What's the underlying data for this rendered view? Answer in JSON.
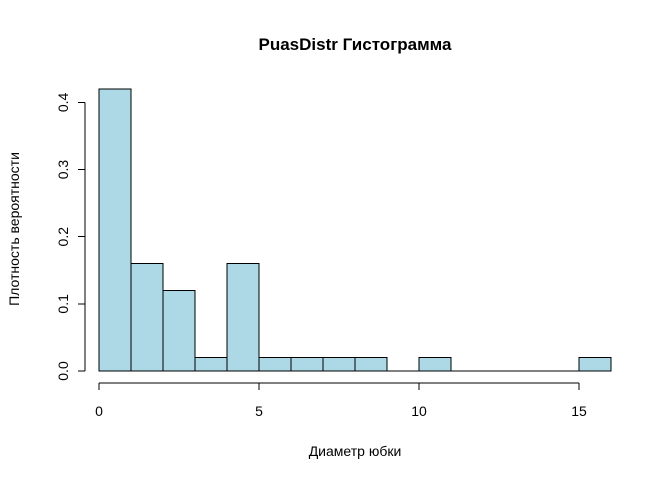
{
  "chart_data": {
    "type": "bar",
    "subtype": "histogram",
    "title": "PuasDistr Гистограмма",
    "xlabel": "Диаметр юбки",
    "ylabel": "Плотность вероятности",
    "bin_edges": [
      0,
      1,
      2,
      3,
      4,
      5,
      6,
      7,
      8,
      9,
      10,
      11,
      12,
      13,
      14,
      15,
      16
    ],
    "values": [
      0.42,
      0.16,
      0.12,
      0.02,
      0.16,
      0.02,
      0.02,
      0.02,
      0.02,
      0,
      0.02,
      0,
      0,
      0,
      0,
      0.02
    ],
    "xlim": [
      0,
      16
    ],
    "ylim": [
      0,
      0.42
    ],
    "x_ticks": [
      0,
      5,
      10,
      15
    ],
    "x_tick_labels": [
      "0",
      "5",
      "10",
      "15"
    ],
    "y_ticks": [
      0,
      0.1,
      0.2,
      0.3,
      0.4
    ],
    "y_tick_labels": [
      "0.0",
      "0.1",
      "0.2",
      "0.3",
      "0.4"
    ],
    "grid": false,
    "legend": "none",
    "bar_fill": "#add8e6",
    "bar_stroke": "#000000"
  }
}
